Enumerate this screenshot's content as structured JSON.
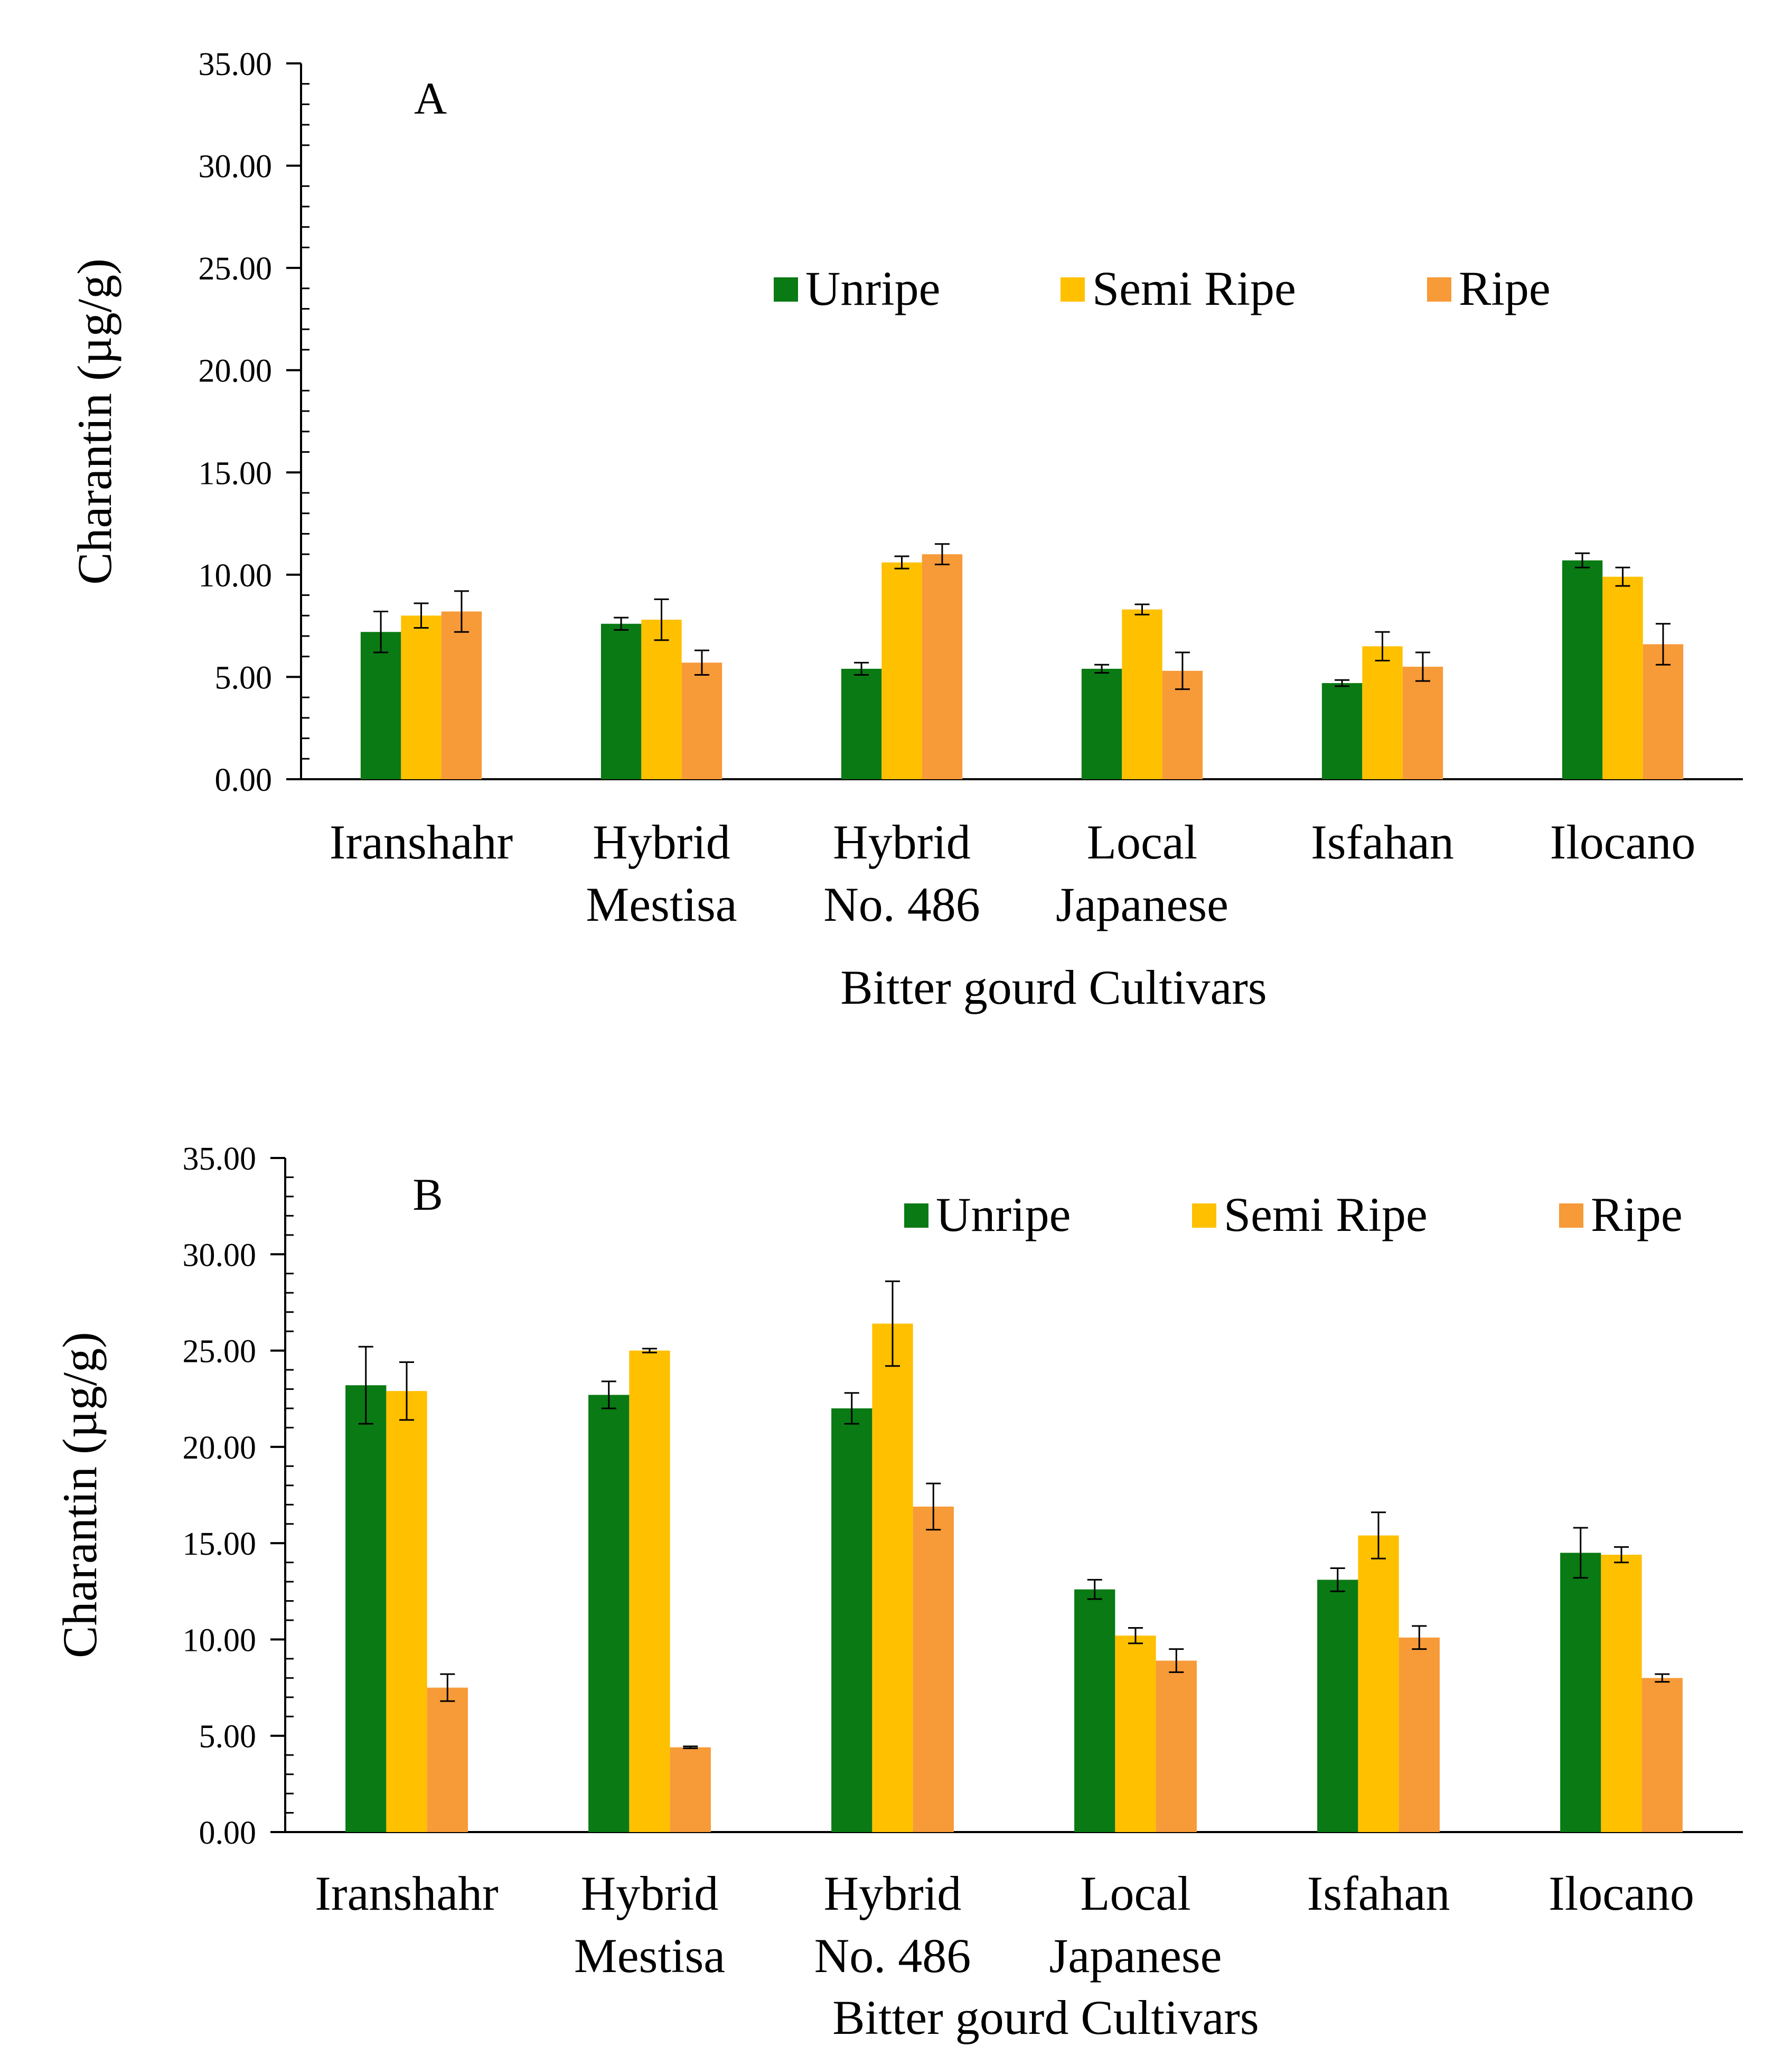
{
  "chart_data": [
    {
      "panel": "A",
      "type": "bar",
      "ylabel": "Charantin (µg/g)",
      "xlabel": "Bitter gourd Cultivars",
      "ylim": [
        0,
        35
      ],
      "y_ticks": [
        "0.00",
        "5.00",
        "10.00",
        "15.00",
        "20.00",
        "25.00",
        "30.00",
        "35.00"
      ],
      "categories": [
        [
          "Iranshahr"
        ],
        [
          "Hybrid",
          "Mestisa"
        ],
        [
          "Hybrid",
          "No. 486"
        ],
        [
          "Local",
          "Japanese"
        ],
        [
          "Isfahan"
        ],
        [
          "Ilocano"
        ]
      ],
      "legend_position": "center-right",
      "series": [
        {
          "name": "Unripe",
          "color": "#0A7A14",
          "values": [
            7.2,
            7.6,
            5.4,
            5.4,
            4.7,
            10.7
          ],
          "errors": [
            1.0,
            0.3,
            0.3,
            0.2,
            0.15,
            0.35
          ]
        },
        {
          "name": "Semi Ripe",
          "color": "#FFC000",
          "values": [
            8.0,
            7.8,
            10.6,
            8.3,
            6.5,
            9.9
          ],
          "errors": [
            0.6,
            1.0,
            0.3,
            0.25,
            0.7,
            0.45
          ]
        },
        {
          "name": "Ripe",
          "color": "#F79A38",
          "values": [
            8.2,
            5.7,
            11.0,
            5.3,
            5.5,
            6.6
          ],
          "errors": [
            1.0,
            0.6,
            0.5,
            0.9,
            0.7,
            1.0
          ]
        }
      ]
    },
    {
      "panel": "B",
      "type": "bar",
      "ylabel": "Charantin (µg/g)",
      "xlabel": "Bitter gourd Cultivars",
      "ylim": [
        0,
        35
      ],
      "y_ticks": [
        "0.00",
        "5.00",
        "10.00",
        "15.00",
        "20.00",
        "25.00",
        "30.00",
        "35.00"
      ],
      "categories": [
        [
          "Iranshahr"
        ],
        [
          "Hybrid",
          "Mestisa"
        ],
        [
          "Hybrid",
          "No. 486"
        ],
        [
          "Local",
          "Japanese"
        ],
        [
          "Isfahan"
        ],
        [
          "Ilocano"
        ]
      ],
      "legend_position": "top-right",
      "series": [
        {
          "name": "Unripe",
          "color": "#0A7A14",
          "values": [
            23.2,
            22.7,
            22.0,
            12.6,
            13.1,
            14.5
          ],
          "errors": [
            2.0,
            0.7,
            0.8,
            0.5,
            0.6,
            1.3
          ]
        },
        {
          "name": "Semi Ripe",
          "color": "#FFC000",
          "values": [
            22.9,
            25.0,
            26.4,
            10.2,
            15.4,
            14.4
          ],
          "errors": [
            1.5,
            0.1,
            2.2,
            0.4,
            1.2,
            0.4
          ]
        },
        {
          "name": "Ripe",
          "color": "#F79A38",
          "values": [
            7.5,
            4.4,
            16.9,
            8.9,
            10.1,
            8.0
          ],
          "errors": [
            0.7,
            0.05,
            1.2,
            0.6,
            0.6,
            0.2
          ]
        }
      ]
    }
  ]
}
